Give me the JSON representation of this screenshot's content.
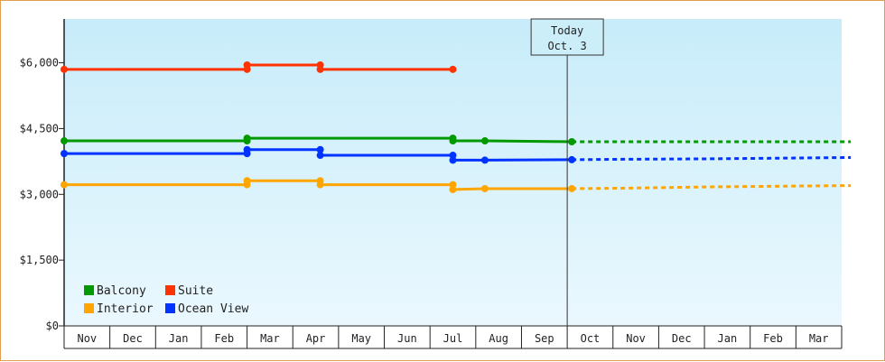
{
  "chart_data": {
    "type": "line",
    "title": "",
    "xlabel": "",
    "ylabel": "",
    "y_axis": {
      "ticks": [
        0,
        1500,
        3000,
        4500,
        6000
      ],
      "tick_labels": [
        "$0",
        "$1,500",
        "$3,000",
        "$4,500",
        "$6,000"
      ],
      "ylim": [
        0,
        7000
      ]
    },
    "x_axis": {
      "months": [
        "Nov",
        "Dec",
        "Jan",
        "Feb",
        "Mar",
        "Apr",
        "May",
        "Jun",
        "Jul",
        "Aug",
        "Sep",
        "Oct",
        "Nov",
        "Dec",
        "Jan",
        "Feb",
        "Mar"
      ]
    },
    "today_marker": {
      "line1": "Today",
      "line2": "Oct. 3",
      "month_index": 11
    },
    "series": [
      {
        "name": "Suite",
        "color": "#ff3300",
        "points": [
          {
            "m": 0.0,
            "v": 5850
          },
          {
            "m": 4.0,
            "v": 5850
          },
          {
            "m": 4.0,
            "v": 5950
          },
          {
            "m": 5.6,
            "v": 5950
          },
          {
            "m": 5.6,
            "v": 5850
          },
          {
            "m": 8.5,
            "v": 5850
          }
        ],
        "projection": []
      },
      {
        "name": "Balcony",
        "color": "#009900",
        "points": [
          {
            "m": 0.0,
            "v": 4220
          },
          {
            "m": 4.0,
            "v": 4220
          },
          {
            "m": 4.0,
            "v": 4280
          },
          {
            "m": 8.5,
            "v": 4280
          },
          {
            "m": 8.5,
            "v": 4220
          },
          {
            "m": 9.2,
            "v": 4220
          },
          {
            "m": 11.1,
            "v": 4200
          }
        ],
        "projection": [
          {
            "m": 11.1,
            "v": 4200
          },
          {
            "m": 16.1,
            "v": 4200
          },
          {
            "m": 17.2,
            "v": 4200
          }
        ]
      },
      {
        "name": "Ocean View",
        "color": "#0033ff",
        "points": [
          {
            "m": 0.0,
            "v": 3930
          },
          {
            "m": 4.0,
            "v": 3930
          },
          {
            "m": 4.0,
            "v": 4020
          },
          {
            "m": 5.6,
            "v": 4020
          },
          {
            "m": 5.6,
            "v": 3890
          },
          {
            "m": 8.5,
            "v": 3890
          },
          {
            "m": 8.5,
            "v": 3780
          },
          {
            "m": 9.2,
            "v": 3780
          },
          {
            "m": 11.1,
            "v": 3790
          }
        ],
        "projection": [
          {
            "m": 11.1,
            "v": 3790
          },
          {
            "m": 12.2,
            "v": 3800
          },
          {
            "m": 14.1,
            "v": 3810
          },
          {
            "m": 16.1,
            "v": 3830
          },
          {
            "m": 17.2,
            "v": 3840
          }
        ]
      },
      {
        "name": "Interior",
        "color": "#ffa500",
        "points": [
          {
            "m": 0.0,
            "v": 3220
          },
          {
            "m": 4.0,
            "v": 3220
          },
          {
            "m": 4.0,
            "v": 3310
          },
          {
            "m": 5.6,
            "v": 3310
          },
          {
            "m": 5.6,
            "v": 3220
          },
          {
            "m": 8.5,
            "v": 3220
          },
          {
            "m": 8.5,
            "v": 3110
          },
          {
            "m": 9.2,
            "v": 3130
          },
          {
            "m": 11.1,
            "v": 3130
          }
        ],
        "projection": [
          {
            "m": 11.1,
            "v": 3130
          },
          {
            "m": 12.2,
            "v": 3140
          },
          {
            "m": 14.1,
            "v": 3170
          },
          {
            "m": 16.1,
            "v": 3190
          },
          {
            "m": 17.2,
            "v": 3200
          }
        ]
      }
    ],
    "legend": {
      "placement": "bottom-left",
      "entries": [
        {
          "label": "Balcony",
          "color": "#009900"
        },
        {
          "label": "Suite",
          "color": "#ff3300"
        },
        {
          "label": "Interior",
          "color": "#ffa500"
        },
        {
          "label": "Ocean View",
          "color": "#0033ff"
        }
      ]
    },
    "background_gradient": [
      "#c8ecfa",
      "#eaf8fe"
    ],
    "grid": false
  }
}
